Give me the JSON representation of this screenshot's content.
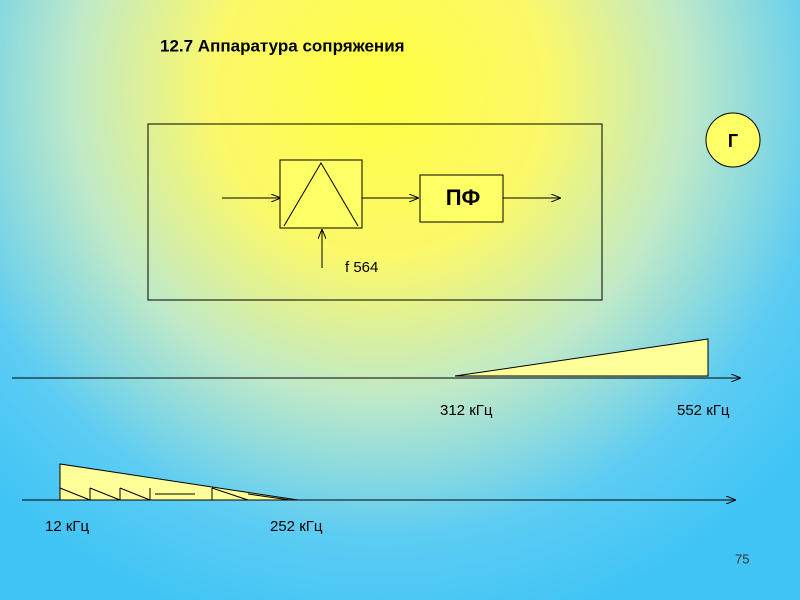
{
  "header": {
    "title": "12.7  Аппаратура  сопряжения"
  },
  "nodes": [
    {
      "label": "ПФ"
    },
    {
      "label": "Г"
    },
    {
      "label": "f  564"
    }
  ],
  "spectra": [
    {
      "low": "312 кГц",
      "high": "552 кГц"
    },
    {
      "low": "12 кГц",
      "high": "252 кГц"
    }
  ],
  "footer": {
    "page": "75"
  }
}
